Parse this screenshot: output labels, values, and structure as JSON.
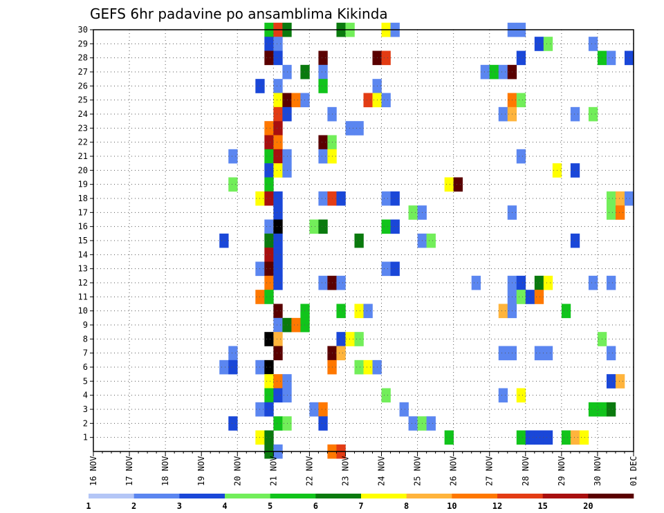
{
  "chart_data": {
    "type": "heatmap",
    "title": "GEFS 6hr padavine po ansamblima Kikinda",
    "xlabel": "",
    "ylabel": "",
    "x_tick_labels": [
      "16 NOV",
      "17 NOV",
      "18 NOV",
      "19 NOV",
      "20 NOV",
      "21 NOV",
      "22 NOV",
      "23 NOV",
      "24 NOV",
      "25 NOV",
      "26 NOV",
      "27 NOV",
      "28 NOV",
      "29 NOV",
      "30 NOV",
      "01 DEC"
    ],
    "x_range_days": [
      0,
      15
    ],
    "y_tick_labels": [
      1,
      2,
      3,
      4,
      5,
      6,
      7,
      8,
      9,
      10,
      11,
      12,
      13,
      14,
      15,
      16,
      17,
      18,
      19,
      20,
      21,
      22,
      23,
      24,
      25,
      26,
      27,
      28,
      29,
      30
    ],
    "y_range": [
      0,
      30
    ],
    "grid": true,
    "legend": "colorbar-bottom",
    "colorbar": {
      "labels": [
        "1",
        "2",
        "3",
        "4",
        "5",
        "6",
        "7",
        "8",
        "10",
        "12",
        "15",
        "20"
      ],
      "colors": [
        "#b4c6f6",
        "#5b86f0",
        "#1a47d8",
        "#72ee5a",
        "#11c41b",
        "#0a7a0e",
        "#ffff00",
        "#ffb43c",
        "#ff7800",
        "#e33c14",
        "#a80f0f",
        "#5a0000"
      ]
    },
    "cell_days": 0.25,
    "cells": [
      [
        4.75,
        30,
        4
      ],
      [
        5,
        30,
        9
      ],
      [
        5.25,
        30,
        5
      ],
      [
        6.75,
        30,
        5
      ],
      [
        7,
        30,
        3
      ],
      [
        8,
        30,
        6
      ],
      [
        8.25,
        30,
        1
      ],
      [
        11.5,
        30,
        1
      ],
      [
        11.75,
        30,
        1
      ],
      [
        12.25,
        29,
        2
      ],
      [
        12.5,
        29,
        3
      ],
      [
        13.75,
        29,
        1
      ],
      [
        4.75,
        29,
        2
      ],
      [
        5,
        29,
        1
      ],
      [
        4.75,
        28,
        11
      ],
      [
        5,
        28,
        2
      ],
      [
        6.25,
        28,
        11
      ],
      [
        7.75,
        28,
        11
      ],
      [
        8,
        28,
        9
      ],
      [
        11.75,
        28,
        2
      ],
      [
        14,
        28,
        4
      ],
      [
        14.25,
        28,
        1
      ],
      [
        14.75,
        28,
        2
      ],
      [
        5.25,
        27,
        1
      ],
      [
        5.75,
        27,
        5
      ],
      [
        6.25,
        27,
        1
      ],
      [
        10.75,
        27,
        1
      ],
      [
        11,
        27,
        4
      ],
      [
        11.25,
        27,
        1
      ],
      [
        11.5,
        27,
        11
      ],
      [
        4.5,
        26,
        2
      ],
      [
        5,
        26,
        1
      ],
      [
        6.25,
        26,
        4
      ],
      [
        7.75,
        26,
        1
      ],
      [
        5,
        25,
        6
      ],
      [
        5.25,
        25,
        11
      ],
      [
        5.5,
        25,
        8
      ],
      [
        5.75,
        25,
        1
      ],
      [
        7.5,
        25,
        9
      ],
      [
        7.75,
        25,
        6
      ],
      [
        8,
        25,
        1
      ],
      [
        11.5,
        25,
        8
      ],
      [
        11.75,
        25,
        3
      ],
      [
        5,
        24,
        9
      ],
      [
        5.25,
        24,
        2
      ],
      [
        6.5,
        24,
        1
      ],
      [
        11.25,
        24,
        1
      ],
      [
        11.5,
        24,
        7
      ],
      [
        13.25,
        24,
        1
      ],
      [
        13.75,
        24,
        3
      ],
      [
        4.75,
        23,
        8
      ],
      [
        5,
        23,
        10
      ],
      [
        7,
        23,
        1
      ],
      [
        7.25,
        23,
        1
      ],
      [
        4.75,
        22,
        10
      ],
      [
        5,
        22,
        8
      ],
      [
        6.25,
        22,
        11
      ],
      [
        6.5,
        22,
        3
      ],
      [
        3.75,
        21,
        1
      ],
      [
        4.75,
        21,
        4
      ],
      [
        5,
        21,
        10
      ],
      [
        5.25,
        21,
        1
      ],
      [
        6.25,
        21,
        1
      ],
      [
        6.5,
        21,
        6
      ],
      [
        11.75,
        21,
        1
      ],
      [
        4.75,
        20,
        2
      ],
      [
        5,
        20,
        6
      ],
      [
        5.25,
        20,
        1
      ],
      [
        12.75,
        20,
        6
      ],
      [
        13.25,
        20,
        2
      ],
      [
        3.75,
        19,
        3
      ],
      [
        4.75,
        19,
        4
      ],
      [
        9.75,
        19,
        6
      ],
      [
        10,
        19,
        11
      ],
      [
        4.5,
        18,
        6
      ],
      [
        4.75,
        18,
        10
      ],
      [
        5,
        18,
        2
      ],
      [
        6.25,
        18,
        1
      ],
      [
        6.5,
        18,
        9
      ],
      [
        6.75,
        18,
        2
      ],
      [
        8,
        18,
        1
      ],
      [
        8.25,
        18,
        2
      ],
      [
        14.25,
        18,
        3
      ],
      [
        14.5,
        18,
        7
      ],
      [
        14.75,
        18,
        1
      ],
      [
        5,
        17,
        2
      ],
      [
        8.75,
        17,
        3
      ],
      [
        9,
        17,
        1
      ],
      [
        11.5,
        17,
        1
      ],
      [
        14.25,
        17,
        3
      ],
      [
        14.5,
        17,
        8
      ],
      [
        4.75,
        16,
        1
      ],
      [
        5,
        16,
        12
      ],
      [
        6,
        16,
        3
      ],
      [
        6.25,
        16,
        5
      ],
      [
        8,
        16,
        4
      ],
      [
        8.25,
        16,
        2
      ],
      [
        3.5,
        15,
        2
      ],
      [
        4.75,
        15,
        5
      ],
      [
        5,
        15,
        2
      ],
      [
        7.25,
        15,
        5
      ],
      [
        9,
        15,
        1
      ],
      [
        9.25,
        15,
        3
      ],
      [
        13.25,
        15,
        2
      ],
      [
        4.75,
        14,
        10
      ],
      [
        5,
        14,
        2
      ],
      [
        4.5,
        13,
        1
      ],
      [
        4.75,
        13,
        11
      ],
      [
        5,
        13,
        2
      ],
      [
        8,
        13,
        1
      ],
      [
        8.25,
        13,
        2
      ],
      [
        4.75,
        12,
        8
      ],
      [
        5,
        12,
        2
      ],
      [
        6.25,
        12,
        1
      ],
      [
        6.5,
        12,
        11
      ],
      [
        6.75,
        12,
        1
      ],
      [
        10.5,
        12,
        1
      ],
      [
        11.5,
        12,
        1
      ],
      [
        11.75,
        12,
        2
      ],
      [
        12.25,
        12,
        5
      ],
      [
        12.5,
        12,
        6
      ],
      [
        13.75,
        12,
        1
      ],
      [
        14.25,
        12,
        1
      ],
      [
        4.5,
        11,
        8
      ],
      [
        4.75,
        11,
        4
      ],
      [
        11.5,
        11,
        1
      ],
      [
        11.75,
        11,
        3
      ],
      [
        12,
        11,
        2
      ],
      [
        12.25,
        11,
        8
      ],
      [
        5,
        10,
        11
      ],
      [
        5.75,
        10,
        4
      ],
      [
        6.75,
        10,
        4
      ],
      [
        7.25,
        10,
        6
      ],
      [
        7.5,
        10,
        1
      ],
      [
        11.25,
        10,
        7
      ],
      [
        11.5,
        10,
        1
      ],
      [
        13,
        10,
        4
      ],
      [
        5,
        9,
        1
      ],
      [
        5.25,
        9,
        5
      ],
      [
        5.5,
        9,
        8
      ],
      [
        5.75,
        9,
        4
      ],
      [
        4.75,
        8,
        12
      ],
      [
        5,
        8,
        7
      ],
      [
        6.75,
        8,
        2
      ],
      [
        7,
        8,
        6
      ],
      [
        7.25,
        8,
        3
      ],
      [
        14,
        8,
        3
      ],
      [
        3.75,
        7,
        1
      ],
      [
        5,
        7,
        11
      ],
      [
        6.5,
        7,
        11
      ],
      [
        6.75,
        7,
        7
      ],
      [
        11.25,
        7,
        1
      ],
      [
        11.5,
        7,
        1
      ],
      [
        12.25,
        7,
        1
      ],
      [
        12.5,
        7,
        1
      ],
      [
        14.25,
        7,
        1
      ],
      [
        3.5,
        6,
        1
      ],
      [
        3.75,
        6,
        2
      ],
      [
        4.5,
        6,
        1
      ],
      [
        4.75,
        6,
        12
      ],
      [
        7.25,
        6,
        3
      ],
      [
        7.5,
        6,
        6
      ],
      [
        7.75,
        6,
        1
      ],
      [
        6.5,
        6,
        8
      ],
      [
        4.75,
        5,
        6
      ],
      [
        5,
        5,
        8
      ],
      [
        5.25,
        5,
        1
      ],
      [
        14.25,
        5,
        2
      ],
      [
        14.5,
        5,
        7
      ],
      [
        4.75,
        4,
        4
      ],
      [
        5,
        4,
        2
      ],
      [
        5.25,
        4,
        1
      ],
      [
        8,
        4,
        3
      ],
      [
        11.25,
        4,
        1
      ],
      [
        11.75,
        4,
        6
      ],
      [
        4.5,
        3,
        1
      ],
      [
        4.75,
        3,
        2
      ],
      [
        6,
        3,
        1
      ],
      [
        6.25,
        3,
        8
      ],
      [
        8.5,
        3,
        1
      ],
      [
        13.75,
        3,
        4
      ],
      [
        14,
        3,
        4
      ],
      [
        14.25,
        3,
        5
      ],
      [
        3.75,
        2,
        2
      ],
      [
        5,
        2,
        4
      ],
      [
        5.25,
        2,
        3
      ],
      [
        6.25,
        2,
        2
      ],
      [
        8.75,
        2,
        1
      ],
      [
        9,
        2,
        3
      ],
      [
        9.25,
        2,
        1
      ],
      [
        4.5,
        1,
        6
      ],
      [
        4.75,
        1,
        5
      ],
      [
        9.75,
        1,
        4
      ],
      [
        11.75,
        1,
        4
      ],
      [
        12,
        1,
        2
      ],
      [
        12.25,
        1,
        2
      ],
      [
        12.5,
        1,
        2
      ],
      [
        13,
        1,
        4
      ],
      [
        13.25,
        1,
        7
      ],
      [
        13.5,
        1,
        6
      ],
      [
        4.75,
        0,
        5
      ],
      [
        5,
        0,
        1
      ],
      [
        6.5,
        0,
        8
      ],
      [
        6.75,
        0,
        9
      ]
    ]
  }
}
